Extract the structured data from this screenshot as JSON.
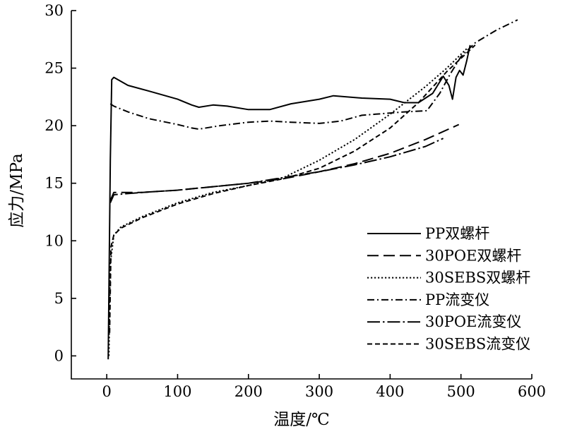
{
  "chart_data": {
    "type": "line",
    "xlabel": "温度/℃",
    "ylabel": "应力/MPa",
    "xlim": [
      -50,
      600
    ],
    "ylim": [
      -2,
      30
    ],
    "xticks": [
      0,
      100,
      200,
      300,
      400,
      500,
      600
    ],
    "yticks": [
      0,
      5,
      10,
      15,
      20,
      25,
      30
    ],
    "legend_position": "bottom-right",
    "grid": false,
    "series": [
      {
        "name": "PP双螺杆",
        "dash": "solid",
        "points": [
          [
            2,
            -0.3
          ],
          [
            5,
            17
          ],
          [
            7,
            24
          ],
          [
            10,
            24.2
          ],
          [
            30,
            23.5
          ],
          [
            60,
            23
          ],
          [
            100,
            22.3
          ],
          [
            120,
            21.8
          ],
          [
            130,
            21.6
          ],
          [
            150,
            21.8
          ],
          [
            170,
            21.7
          ],
          [
            200,
            21.4
          ],
          [
            230,
            21.4
          ],
          [
            260,
            21.9
          ],
          [
            300,
            22.3
          ],
          [
            320,
            22.6
          ],
          [
            360,
            22.4
          ],
          [
            400,
            22.3
          ],
          [
            420,
            22
          ],
          [
            440,
            22
          ],
          [
            460,
            22.8
          ],
          [
            475,
            24.3
          ],
          [
            483,
            23.5
          ],
          [
            488,
            22.3
          ],
          [
            493,
            24.2
          ],
          [
            498,
            24.8
          ],
          [
            503,
            24.4
          ],
          [
            508,
            25.6
          ],
          [
            513,
            27
          ]
        ]
      },
      {
        "name": "30POE双螺杆",
        "dash": "long-dash",
        "points": [
          [
            5,
            13.5
          ],
          [
            10,
            14.2
          ],
          [
            50,
            14.2
          ],
          [
            100,
            14.4
          ],
          [
            150,
            14.7
          ],
          [
            200,
            15
          ],
          [
            250,
            15.4
          ],
          [
            300,
            16
          ],
          [
            350,
            16.7
          ],
          [
            400,
            17.6
          ],
          [
            450,
            18.8
          ],
          [
            497,
            20.1
          ]
        ]
      },
      {
        "name": "30SEBS双螺杆",
        "dash": "dotted",
        "points": [
          [
            3,
            0
          ],
          [
            5,
            8
          ],
          [
            10,
            10.5
          ],
          [
            20,
            11.2
          ],
          [
            50,
            12.1
          ],
          [
            100,
            13.3
          ],
          [
            150,
            14.2
          ],
          [
            200,
            14.8
          ],
          [
            250,
            15.5
          ],
          [
            300,
            17
          ],
          [
            350,
            18.8
          ],
          [
            400,
            21
          ],
          [
            450,
            23.4
          ],
          [
            480,
            25
          ],
          [
            510,
            26.8
          ]
        ]
      },
      {
        "name": "PP流变仪",
        "dash": "dash-dot",
        "points": [
          [
            5,
            21.9
          ],
          [
            10,
            21.7
          ],
          [
            30,
            21.2
          ],
          [
            60,
            20.6
          ],
          [
            100,
            20.1
          ],
          [
            120,
            19.8
          ],
          [
            130,
            19.7
          ],
          [
            160,
            20
          ],
          [
            200,
            20.3
          ],
          [
            230,
            20.4
          ],
          [
            260,
            20.3
          ],
          [
            300,
            20.2
          ],
          [
            330,
            20.4
          ],
          [
            360,
            20.9
          ],
          [
            380,
            21
          ],
          [
            420,
            21.2
          ],
          [
            452,
            21.3
          ],
          [
            470,
            22.8
          ],
          [
            485,
            24.5
          ],
          [
            500,
            26
          ],
          [
            520,
            27.2
          ],
          [
            550,
            28.3
          ],
          [
            580,
            29.2
          ]
        ]
      },
      {
        "name": "30POE流变仪",
        "dash": "long-dash-dot",
        "points": [
          [
            5,
            13.3
          ],
          [
            10,
            14
          ],
          [
            50,
            14.2
          ],
          [
            100,
            14.4
          ],
          [
            150,
            14.7
          ],
          [
            200,
            15
          ],
          [
            250,
            15.5
          ],
          [
            300,
            16
          ],
          [
            350,
            16.6
          ],
          [
            400,
            17.3
          ],
          [
            450,
            18.2
          ],
          [
            475,
            18.9
          ]
        ]
      },
      {
        "name": "30SEBS流变仪",
        "dash": "short-dash",
        "points": [
          [
            4,
            2
          ],
          [
            6,
            9.5
          ],
          [
            10,
            10.5
          ],
          [
            20,
            11.1
          ],
          [
            50,
            12
          ],
          [
            100,
            13.2
          ],
          [
            150,
            14.1
          ],
          [
            200,
            14.8
          ],
          [
            250,
            15.4
          ],
          [
            300,
            16.3
          ],
          [
            350,
            17.8
          ],
          [
            400,
            19.8
          ],
          [
            440,
            22
          ],
          [
            480,
            24.7
          ],
          [
            520,
            27
          ]
        ]
      }
    ]
  }
}
